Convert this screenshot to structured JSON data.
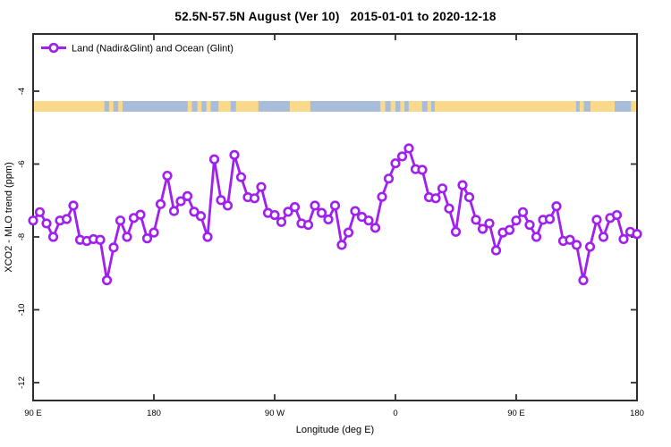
{
  "title": "52.5N-57.5N August (Ver 10)   2015-01-01 to 2020-12-18",
  "legend": {
    "label": "Land (Nadir&Glint) and Ocean (Glint)"
  },
  "colors": {
    "series": "#A020F0",
    "marker_fill": "#FFFFFF",
    "land": "#FBD98B",
    "ocean": "#A7BDDA",
    "axis": "#2E2E2E",
    "text": "#000000"
  },
  "chart_data": {
    "type": "line",
    "title": "52.5N-57.5N August (Ver 10)   2015-01-01 to 2020-12-18",
    "xlabel": "Longitude (deg E)",
    "ylabel": "XCO2 - MLO trend (ppm)",
    "legend_position": "top-left-inside",
    "grid": false,
    "xlim_deg_east": [
      90,
      540
    ],
    "ylim": [
      -12.5,
      -2.4
    ],
    "x_ticks": [
      {
        "deg": 90,
        "label": "90 E"
      },
      {
        "deg": 180,
        "label": "180"
      },
      {
        "deg": 270,
        "label": "90 W"
      },
      {
        "deg": 360,
        "label": "0"
      },
      {
        "deg": 450,
        "label": "90 E"
      },
      {
        "deg": 540,
        "label": "180"
      }
    ],
    "y_ticks": [
      {
        "value": -4,
        "label": "-4"
      },
      {
        "value": -6,
        "label": "-6"
      },
      {
        "value": -8,
        "label": "-8"
      },
      {
        "value": -10,
        "label": "-10"
      },
      {
        "value": -12,
        "label": "-12"
      }
    ],
    "series": [
      {
        "name": "Land (Nadir&Glint) and Ocean (Glint)",
        "marker": "open-circle",
        "x_deg_east": [
          90,
          95,
          100,
          105,
          110,
          115,
          120,
          125,
          130,
          135,
          140,
          145,
          150,
          155,
          160,
          165,
          170,
          175,
          180,
          185,
          190,
          195,
          200,
          205,
          210,
          215,
          220,
          225,
          230,
          235,
          240,
          245,
          250,
          255,
          260,
          265,
          270,
          275,
          280,
          285,
          290,
          295,
          300,
          305,
          310,
          315,
          320,
          325,
          330,
          335,
          340,
          345,
          350,
          355,
          360,
          365,
          370,
          375,
          380,
          385,
          390,
          395,
          400,
          405,
          410,
          415,
          420,
          425,
          430,
          435,
          440,
          445,
          450,
          455,
          460,
          465,
          470,
          475,
          480,
          485,
          490,
          495,
          500,
          505,
          510,
          515,
          520,
          525,
          530,
          535,
          540
        ],
        "values": [
          -7.55,
          -7.32,
          -7.63,
          -8.0,
          -7.55,
          -7.51,
          -7.14,
          -8.08,
          -8.11,
          -8.06,
          -8.08,
          -9.19,
          -8.29,
          -7.55,
          -8.0,
          -7.48,
          -7.39,
          -8.04,
          -7.88,
          -7.1,
          -6.32,
          -7.29,
          -7.02,
          -6.88,
          -7.31,
          -7.43,
          -8.0,
          -5.87,
          -6.99,
          -7.14,
          -5.75,
          -6.36,
          -6.91,
          -6.94,
          -6.63,
          -7.34,
          -7.4,
          -7.59,
          -7.31,
          -7.18,
          -7.63,
          -7.67,
          -7.14,
          -7.34,
          -7.52,
          -7.14,
          -8.22,
          -7.88,
          -7.29,
          -7.45,
          -7.55,
          -7.75,
          -6.9,
          -6.4,
          -5.98,
          -5.79,
          -5.57,
          -6.14,
          -6.16,
          -6.91,
          -6.94,
          -6.67,
          -7.22,
          -7.86,
          -6.58,
          -6.91,
          -7.53,
          -7.78,
          -7.63,
          -8.37,
          -7.88,
          -7.81,
          -7.55,
          -7.32,
          -7.67,
          -8.0,
          -7.53,
          -7.51,
          -7.16,
          -8.11,
          -8.08,
          -8.22,
          -9.19,
          -8.27,
          -7.53,
          -8.0,
          -7.48,
          -7.4,
          -8.06,
          -7.86,
          -7.92
        ]
      }
    ],
    "land_ocean_band": {
      "description": "coarse land/ocean map strip for 52.5N-57.5N plotted across longitude",
      "value_center": -4.4,
      "ocean_spans_frac": [
        [
          0.118,
          0.126
        ],
        [
          0.133,
          0.141
        ],
        [
          0.148,
          0.307
        ],
        [
          0.327,
          0.336
        ],
        [
          0.373,
          0.425
        ],
        [
          0.459,
          0.633
        ],
        [
          0.644,
          0.653
        ],
        [
          0.659,
          0.665
        ],
        [
          0.899,
          0.923
        ],
        [
          0.963,
          0.99
        ]
      ],
      "land_overlay_spans_frac": [
        [
          0.256,
          0.263
        ],
        [
          0.272,
          0.279
        ],
        [
          0.287,
          0.294
        ],
        [
          0.575,
          0.583
        ],
        [
          0.592,
          0.6
        ],
        [
          0.608,
          0.615
        ],
        [
          0.622,
          0.633
        ],
        [
          0.905,
          0.912
        ]
      ]
    }
  }
}
